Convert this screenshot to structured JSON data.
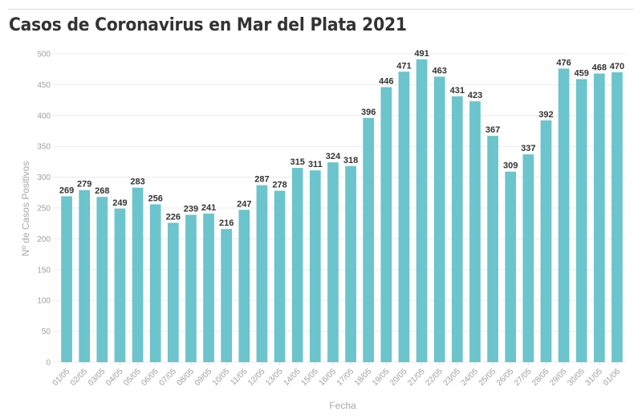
{
  "chart_data": {
    "type": "bar",
    "title": "Casos de Coronavirus en Mar del Plata 2021",
    "xlabel": "Fecha",
    "ylabel": "Nº de Casos Positivos",
    "ylim": [
      0,
      500
    ],
    "yticks": [
      0,
      50,
      100,
      150,
      200,
      250,
      300,
      350,
      400,
      450,
      500
    ],
    "grid": true,
    "legend": "none",
    "bar_color": "#6cc4cc",
    "categories": [
      "01/05",
      "02/05",
      "03/05",
      "04/05",
      "05/05",
      "06/05",
      "07/05",
      "08/05",
      "09/05",
      "10/05",
      "11/05",
      "12/05",
      "13/05",
      "14/05",
      "15/05",
      "16/05",
      "17/05",
      "18/05",
      "19/05",
      "20/05",
      "21/05",
      "22/05",
      "23/05",
      "24/05",
      "25/05",
      "26/05",
      "27/05",
      "28/05",
      "29/05",
      "30/05",
      "31/05",
      "01/06"
    ],
    "values": [
      269,
      279,
      268,
      249,
      283,
      256,
      226,
      239,
      241,
      216,
      247,
      287,
      278,
      315,
      311,
      324,
      318,
      396,
      446,
      471,
      491,
      463,
      431,
      423,
      367,
      309,
      337,
      392,
      476,
      459,
      468,
      470
    ]
  }
}
